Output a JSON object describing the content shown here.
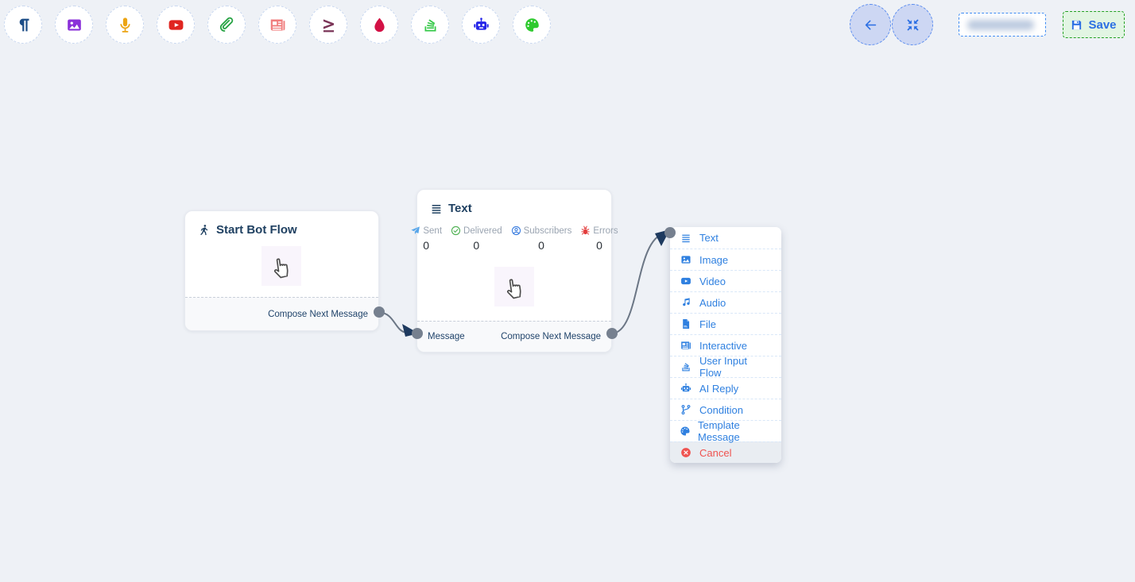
{
  "toolbar": {
    "tools": [
      {
        "icon": "paragraph-icon",
        "color": "#1c4d87"
      },
      {
        "icon": "image-icon",
        "color": "#8b30d9"
      },
      {
        "icon": "microphone-icon",
        "color": "#eca413"
      },
      {
        "icon": "youtube-icon",
        "color": "#e02520"
      },
      {
        "icon": "paperclip-icon",
        "color": "#27a344"
      },
      {
        "icon": "newspaper-icon",
        "color": "#f07d7d"
      },
      {
        "icon": "greater-equal-icon",
        "color": "#7b3558"
      },
      {
        "icon": "droplet-icon",
        "color": "#d31145"
      },
      {
        "icon": "user-input-flow-icon",
        "color": "#35c948"
      },
      {
        "icon": "robot-icon",
        "color": "#2525e8"
      },
      {
        "icon": "palette-icon",
        "color": "#2fca2f"
      }
    ]
  },
  "header_actions": {
    "back_button": {
      "icon": "arrow-left-icon"
    },
    "fit_view_button": {
      "icon": "compress-icon"
    },
    "flow_name_input": {
      "value": "",
      "masked": true
    },
    "save_button": {
      "label": "Save",
      "icon": "save-icon",
      "accent": "#2b6fe3"
    }
  },
  "nodes": {
    "start": {
      "title": "Start Bot Flow",
      "icon": "walking-icon",
      "cursor_icon": "hand-pointer-icon",
      "output_label": "Compose Next Message"
    },
    "text": {
      "title": "Text",
      "icon": "align-justify-icon",
      "cursor_icon": "hand-pointer-icon",
      "stats": [
        {
          "icon": "paper-plane-icon",
          "color": "#58a6ea",
          "label": "Sent",
          "value": "0"
        },
        {
          "icon": "check-circle-icon",
          "color": "#4caf50",
          "label": "Delivered",
          "value": "0"
        },
        {
          "icon": "user-circle-icon",
          "color": "#3d7fe0",
          "label": "Subscribers",
          "value": "0"
        },
        {
          "icon": "bug-icon",
          "color": "#e23b3b",
          "label": "Errors",
          "value": "0"
        }
      ],
      "input_label": "Message",
      "output_label": "Compose Next Message"
    }
  },
  "context_menu": {
    "accent": "#2f80e0",
    "danger_color": "#ef5350",
    "items": [
      {
        "icon": "align-justify-icon",
        "label": "Text"
      },
      {
        "icon": "image-icon",
        "label": "Image"
      },
      {
        "icon": "youtube-icon",
        "label": "Video"
      },
      {
        "icon": "music-icon",
        "label": "Audio"
      },
      {
        "icon": "file-icon",
        "label": "File"
      },
      {
        "icon": "newspaper-icon",
        "label": "Interactive"
      },
      {
        "icon": "user-input-flow-icon",
        "label": "User Input Flow"
      },
      {
        "icon": "robot-icon",
        "label": "AI Reply"
      },
      {
        "icon": "code-branch-icon",
        "label": "Condition"
      },
      {
        "icon": "palette-icon",
        "label": "Template Message"
      },
      {
        "icon": "times-circle-icon",
        "label": "Cancel",
        "danger": true
      }
    ]
  },
  "connections": {
    "curve_color": "#6b7685",
    "arrow_color": "#1e3a5f",
    "endpoint_color": "#76808f"
  }
}
